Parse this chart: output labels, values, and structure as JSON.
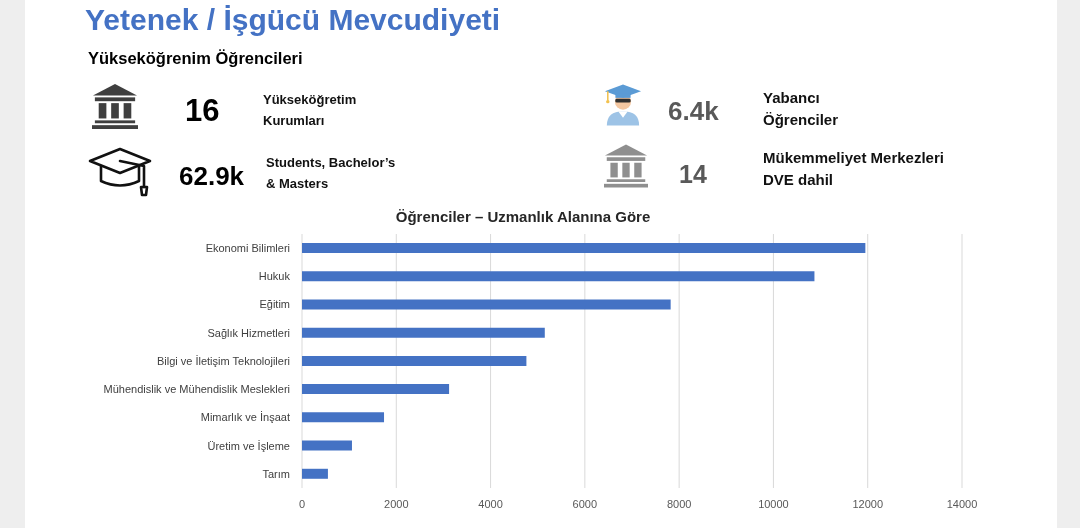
{
  "chart_data": [
    {
      "type": "other",
      "title": "Yetenek / İşgücü Mevcudiyeti",
      "subtitle": "Yükseköğrenim Öğrencileri",
      "annotations": [
        "16",
        "Yükseköğretim Kurumları",
        "6.4k",
        "Yabancı Öğrenciler",
        "62.9k",
        "Students, Bachelor’s & Masters",
        "14",
        "Mükemmeliyet Merkezleri DVE dahil"
      ]
    },
    {
      "type": "bar",
      "orientation": "horizontal",
      "title": "Öğrenciler – Uzmanlık Alanına Göre",
      "categories": [
        "Ekonomi Bilimleri",
        "Hukuk",
        "Eğitim",
        "Sağlık Hizmetleri",
        "Bilgi ve İletişim Teknolojileri",
        "Mühendislik ve Mühendislik Meslekleri",
        "Mimarlık ve İnşaat",
        "Üretim ve İşleme",
        "Tarım"
      ],
      "values": [
        11950,
        10870,
        7820,
        5150,
        4760,
        3120,
        1740,
        1060,
        550
      ],
      "color": "#4472c4",
      "xlim": [
        0,
        14000
      ],
      "xticks": [
        0,
        2000,
        4000,
        6000,
        8000,
        10000,
        12000,
        14000
      ],
      "grid": "x"
    }
  ]
}
